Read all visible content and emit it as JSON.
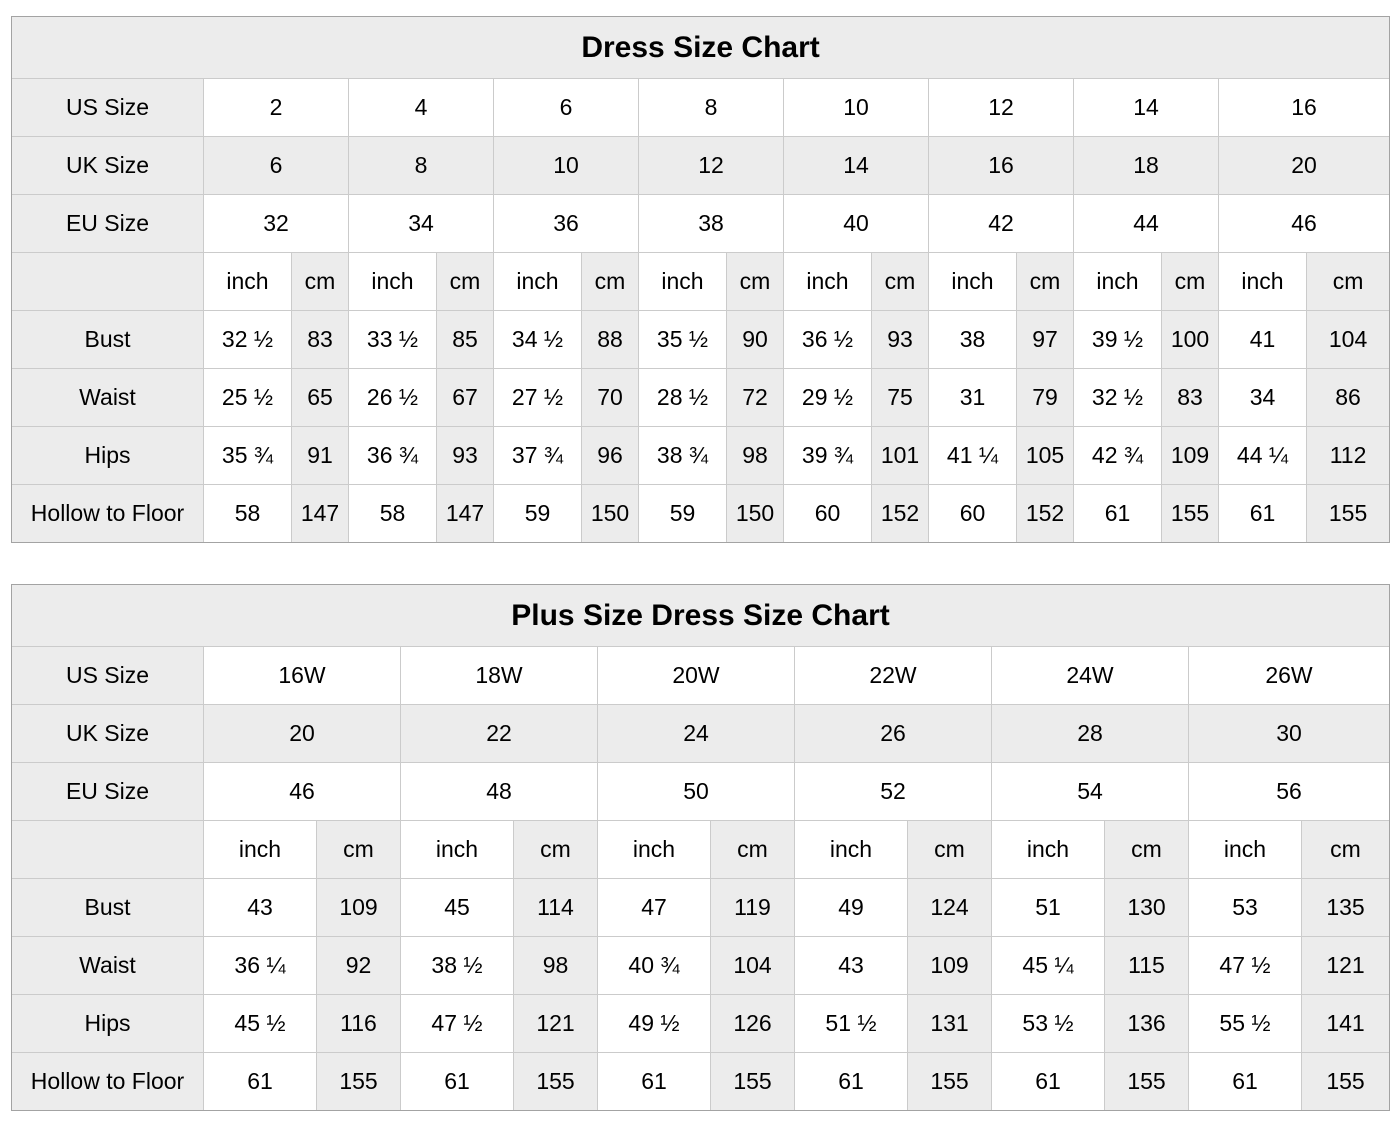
{
  "colors": {
    "shaded_cell": "#ececec",
    "grid_line": "#cbcbcb",
    "outer_border": "#a3a3a3",
    "text": "#000000",
    "background": "#ffffff"
  },
  "chart_data": [
    {
      "type": "table",
      "title": "Dress Size Chart",
      "unit_labels": [
        "inch",
        "cm"
      ],
      "size_rows": [
        {
          "label": "US Size",
          "shaded": false,
          "values": [
            "2",
            "4",
            "6",
            "8",
            "10",
            "12",
            "14",
            "16"
          ]
        },
        {
          "label": "UK Size",
          "shaded": true,
          "values": [
            "6",
            "8",
            "10",
            "12",
            "14",
            "16",
            "18",
            "20"
          ]
        },
        {
          "label": "EU Size",
          "shaded": false,
          "values": [
            "32",
            "34",
            "36",
            "38",
            "40",
            "42",
            "44",
            "46"
          ]
        }
      ],
      "measure_rows": [
        {
          "label": "Bust",
          "pairs": [
            [
              "32 ½",
              "83"
            ],
            [
              "33 ½",
              "85"
            ],
            [
              "34 ½",
              "88"
            ],
            [
              "35 ½",
              "90"
            ],
            [
              "36 ½",
              "93"
            ],
            [
              "38",
              "97"
            ],
            [
              "39 ½",
              "100"
            ],
            [
              "41",
              "104"
            ]
          ]
        },
        {
          "label": "Waist",
          "pairs": [
            [
              "25 ½",
              "65"
            ],
            [
              "26 ½",
              "67"
            ],
            [
              "27 ½",
              "70"
            ],
            [
              "28 ½",
              "72"
            ],
            [
              "29 ½",
              "75"
            ],
            [
              "31",
              "79"
            ],
            [
              "32 ½",
              "83"
            ],
            [
              "34",
              "86"
            ]
          ]
        },
        {
          "label": "Hips",
          "pairs": [
            [
              "35 ¾",
              "91"
            ],
            [
              "36 ¾",
              "93"
            ],
            [
              "37 ¾",
              "96"
            ],
            [
              "38 ¾",
              "98"
            ],
            [
              "39 ¾",
              "101"
            ],
            [
              "41 ¼",
              "105"
            ],
            [
              "42 ¾",
              "109"
            ],
            [
              "44 ¼",
              "112"
            ]
          ]
        },
        {
          "label": "Hollow to Floor",
          "pairs": [
            [
              "58",
              "147"
            ],
            [
              "58",
              "147"
            ],
            [
              "59",
              "150"
            ],
            [
              "59",
              "150"
            ],
            [
              "60",
              "152"
            ],
            [
              "60",
              "152"
            ],
            [
              "61",
              "155"
            ],
            [
              "61",
              "155"
            ]
          ]
        }
      ]
    },
    {
      "type": "table",
      "title": "Plus Size Dress Size Chart",
      "unit_labels": [
        "inch",
        "cm"
      ],
      "size_rows": [
        {
          "label": "US Size",
          "shaded": false,
          "values": [
            "16W",
            "18W",
            "20W",
            "22W",
            "24W",
            "26W"
          ]
        },
        {
          "label": "UK Size",
          "shaded": true,
          "values": [
            "20",
            "22",
            "24",
            "26",
            "28",
            "30"
          ]
        },
        {
          "label": "EU Size",
          "shaded": false,
          "values": [
            "46",
            "48",
            "50",
            "52",
            "54",
            "56"
          ]
        }
      ],
      "measure_rows": [
        {
          "label": "Bust",
          "pairs": [
            [
              "43",
              "109"
            ],
            [
              "45",
              "114"
            ],
            [
              "47",
              "119"
            ],
            [
              "49",
              "124"
            ],
            [
              "51",
              "130"
            ],
            [
              "53",
              "135"
            ]
          ]
        },
        {
          "label": "Waist",
          "pairs": [
            [
              "36 ¼",
              "92"
            ],
            [
              "38 ½",
              "98"
            ],
            [
              "40 ¾",
              "104"
            ],
            [
              "43",
              "109"
            ],
            [
              "45 ¼",
              "115"
            ],
            [
              "47 ½",
              "121"
            ]
          ]
        },
        {
          "label": "Hips",
          "pairs": [
            [
              "45 ½",
              "116"
            ],
            [
              "47 ½",
              "121"
            ],
            [
              "49 ½",
              "126"
            ],
            [
              "51 ½",
              "131"
            ],
            [
              "53 ½",
              "136"
            ],
            [
              "55 ½",
              "141"
            ]
          ]
        },
        {
          "label": "Hollow to Floor",
          "pairs": [
            [
              "61",
              "155"
            ],
            [
              "61",
              "155"
            ],
            [
              "61",
              "155"
            ],
            [
              "61",
              "155"
            ],
            [
              "61",
              "155"
            ],
            [
              "61",
              "155"
            ]
          ]
        }
      ]
    }
  ]
}
